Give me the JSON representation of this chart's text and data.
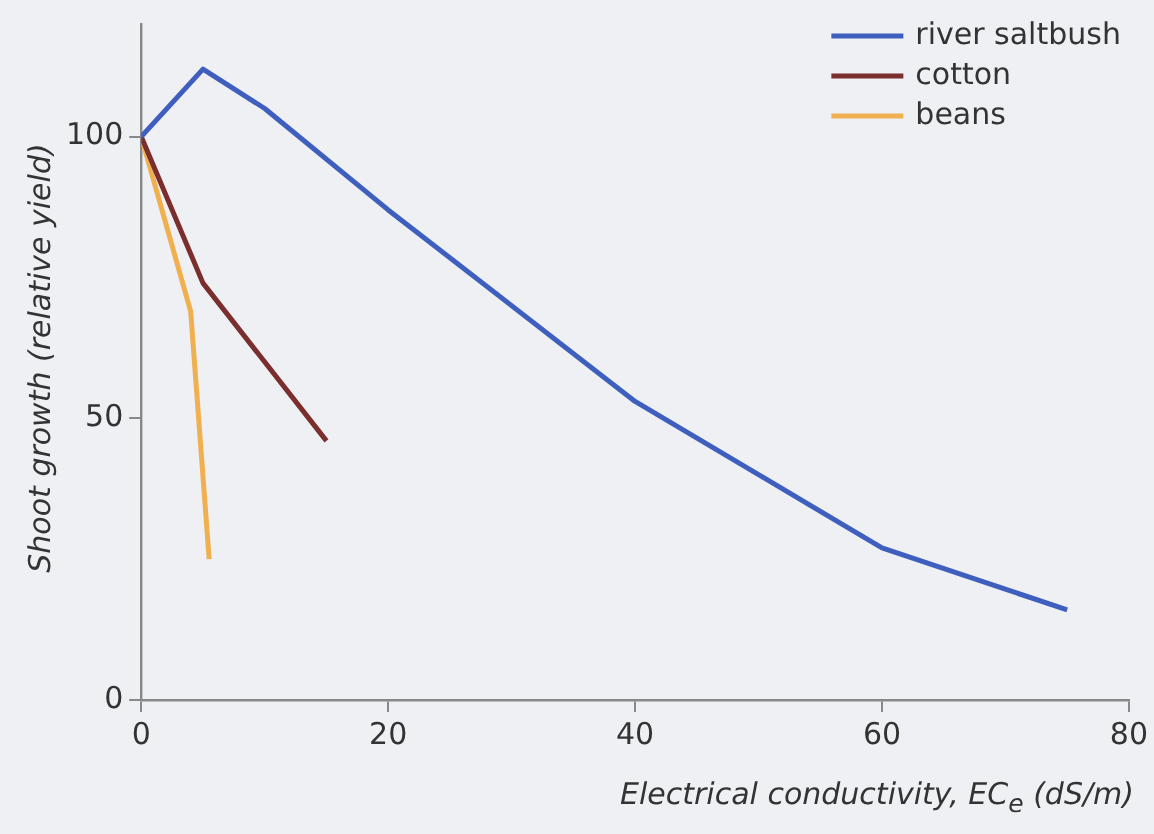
{
  "chart_data": {
    "type": "line",
    "xlabel": "Electrical conductivity, EC$_{e}$ (dS/m)",
    "ylabel": "Shoot growth (relative yield)",
    "xlim": [
      0,
      80
    ],
    "xticks": [
      0,
      20,
      40,
      60,
      80
    ],
    "ylim": [
      0,
      120
    ],
    "yticks": [
      0,
      50,
      100
    ],
    "grid": false,
    "legend": "top right",
    "marker": "none",
    "line_style": "solid",
    "series": [
      {
        "name": "river saltbush",
        "color": "#3f5fbf",
        "x": [
          0,
          5,
          10,
          20,
          40,
          60,
          75
        ],
        "values": [
          100,
          112,
          105,
          87,
          53,
          27,
          16
        ]
      },
      {
        "name": "cotton",
        "color": "#7a2e2e",
        "x": [
          0,
          5,
          15
        ],
        "values": [
          100,
          74,
          46
        ]
      },
      {
        "name": "beans",
        "color": "#f0b050",
        "x": [
          0,
          4,
          5.5
        ],
        "values": [
          100,
          69,
          25
        ]
      }
    ]
  }
}
